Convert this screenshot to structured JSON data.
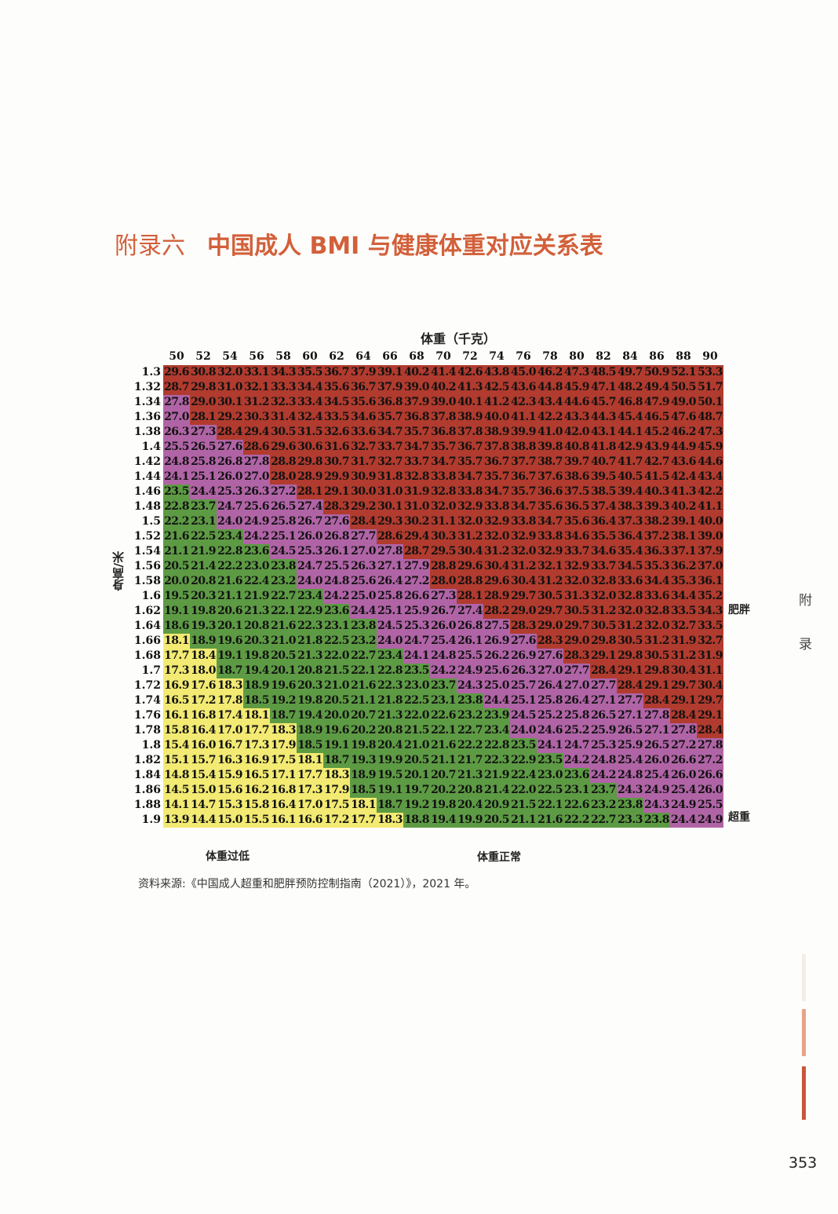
{
  "title": {
    "prefix": "附录六",
    "main": "中国成人 BMI 与健康体重对应关系表"
  },
  "x_axis_title": "体重（千克）",
  "y_axis_title": "身高/米",
  "categories": {
    "underweight": "体重过低",
    "normal": "体重正常",
    "overweight": "超重",
    "obese": "肥胖"
  },
  "side_tab": [
    "附",
    "录"
  ],
  "source": "资料来源:《中国成人超重和肥胖预防控制指南（2021）》，2021 年。",
  "page_number": "353",
  "colors": {
    "underweight": "#f2ea72",
    "normal": "#5d9a44",
    "overweight": "#b064a6",
    "obese": "#b03b2e",
    "accent": "#d2603a"
  },
  "chart_data": {
    "type": "table",
    "x_label": "体重（千克）",
    "y_label": "身高/米",
    "weights": [
      "50",
      "52",
      "54",
      "56",
      "58",
      "60",
      "62",
      "64",
      "66",
      "68",
      "70",
      "72",
      "74",
      "76",
      "78",
      "80",
      "82",
      "84",
      "86",
      "88",
      "90"
    ],
    "heights": [
      "1.3",
      "1.32",
      "1.34",
      "1.36",
      "1.38",
      "1.4",
      "1.42",
      "1.44",
      "1.46",
      "1.48",
      "1.5",
      "1.52",
      "1.54",
      "1.56",
      "1.58",
      "1.6",
      "1.62",
      "1.64",
      "1.66",
      "1.68",
      "1.7",
      "1.72",
      "1.74",
      "1.76",
      "1.78",
      "1.8",
      "1.82",
      "1.84",
      "1.86",
      "1.88",
      "1.9"
    ],
    "bmi": [
      [
        "29.6",
        "30.8",
        "32.0",
        "33.1",
        "34.3",
        "35.5",
        "36.7",
        "37.9",
        "39.1",
        "40.2",
        "41.4",
        "42.6",
        "43.8",
        "45.0",
        "46.2",
        "47.3",
        "48.5",
        "49.7",
        "50.9",
        "52.1",
        "53.3"
      ],
      [
        "28.7",
        "29.8",
        "31.0",
        "32.1",
        "33.3",
        "34.4",
        "35.6",
        "36.7",
        "37.9",
        "39.0",
        "40.2",
        "41.3",
        "42.5",
        "43.6",
        "44.8",
        "45.9",
        "47.1",
        "48.2",
        "49.4",
        "50.5",
        "51.7"
      ],
      [
        "27.8",
        "29.0",
        "30.1",
        "31.2",
        "32.3",
        "33.4",
        "34.5",
        "35.6",
        "36.8",
        "37.9",
        "39.0",
        "40.1",
        "41.2",
        "42.3",
        "43.4",
        "44.6",
        "45.7",
        "46.8",
        "47.9",
        "49.0",
        "50.1"
      ],
      [
        "27.0",
        "28.1",
        "29.2",
        "30.3",
        "31.4",
        "32.4",
        "33.5",
        "34.6",
        "35.7",
        "36.8",
        "37.8",
        "38.9",
        "40.0",
        "41.1",
        "42.2",
        "43.3",
        "44.3",
        "45.4",
        "46.5",
        "47.6",
        "48.7"
      ],
      [
        "26.3",
        "27.3",
        "28.4",
        "29.4",
        "30.5",
        "31.5",
        "32.6",
        "33.6",
        "34.7",
        "35.7",
        "36.8",
        "37.8",
        "38.9",
        "39.9",
        "41.0",
        "42.0",
        "43.1",
        "44.1",
        "45.2",
        "46.2",
        "47.3"
      ],
      [
        "25.5",
        "26.5",
        "27.6",
        "28.6",
        "29.6",
        "30.6",
        "31.6",
        "32.7",
        "33.7",
        "34.7",
        "35.7",
        "36.7",
        "37.8",
        "38.8",
        "39.8",
        "40.8",
        "41.8",
        "42.9",
        "43.9",
        "44.9",
        "45.9"
      ],
      [
        "24.8",
        "25.8",
        "26.8",
        "27.8",
        "28.8",
        "29.8",
        "30.7",
        "31.7",
        "32.7",
        "33.7",
        "34.7",
        "35.7",
        "36.7",
        "37.7",
        "38.7",
        "39.7",
        "40.7",
        "41.7",
        "42.7",
        "43.6",
        "44.6"
      ],
      [
        "24.1",
        "25.1",
        "26.0",
        "27.0",
        "28.0",
        "28.9",
        "29.9",
        "30.9",
        "31.8",
        "32.8",
        "33.8",
        "34.7",
        "35.7",
        "36.7",
        "37.6",
        "38.6",
        "39.5",
        "40.5",
        "41.5",
        "42.4",
        "43.4"
      ],
      [
        "23.5",
        "24.4",
        "25.3",
        "26.3",
        "27.2",
        "28.1",
        "29.1",
        "30.0",
        "31.0",
        "31.9",
        "32.8",
        "33.8",
        "34.7",
        "35.7",
        "36.6",
        "37.5",
        "38.5",
        "39.4",
        "40.3",
        "41.3",
        "42.2"
      ],
      [
        "22.8",
        "23.7",
        "24.7",
        "25.6",
        "26.5",
        "27.4",
        "28.3",
        "29.2",
        "30.1",
        "31.0",
        "32.0",
        "32.9",
        "33.8",
        "34.7",
        "35.6",
        "36.5",
        "37.4",
        "38.3",
        "39.3",
        "40.2",
        "41.1"
      ],
      [
        "22.2",
        "23.1",
        "24.0",
        "24.9",
        "25.8",
        "26.7",
        "27.6",
        "28.4",
        "29.3",
        "30.2",
        "31.1",
        "32.0",
        "32.9",
        "33.8",
        "34.7",
        "35.6",
        "36.4",
        "37.3",
        "38.2",
        "39.1",
        "40.0"
      ],
      [
        "21.6",
        "22.5",
        "23.4",
        "24.2",
        "25.1",
        "26.0",
        "26.8",
        "27.7",
        "28.6",
        "29.4",
        "30.3",
        "31.2",
        "32.0",
        "32.9",
        "33.8",
        "34.6",
        "35.5",
        "36.4",
        "37.2",
        "38.1",
        "39.0"
      ],
      [
        "21.1",
        "21.9",
        "22.8",
        "23.6",
        "24.5",
        "25.3",
        "26.1",
        "27.0",
        "27.8",
        "28.7",
        "29.5",
        "30.4",
        "31.2",
        "32.0",
        "32.9",
        "33.7",
        "34.6",
        "35.4",
        "36.3",
        "37.1",
        "37.9"
      ],
      [
        "20.5",
        "21.4",
        "22.2",
        "23.0",
        "23.8",
        "24.7",
        "25.5",
        "26.3",
        "27.1",
        "27.9",
        "28.8",
        "29.6",
        "30.4",
        "31.2",
        "32.1",
        "32.9",
        "33.7",
        "34.5",
        "35.3",
        "36.2",
        "37.0"
      ],
      [
        "20.0",
        "20.8",
        "21.6",
        "22.4",
        "23.2",
        "24.0",
        "24.8",
        "25.6",
        "26.4",
        "27.2",
        "28.0",
        "28.8",
        "29.6",
        "30.4",
        "31.2",
        "32.0",
        "32.8",
        "33.6",
        "34.4",
        "35.3",
        "36.1"
      ],
      [
        "19.5",
        "20.3",
        "21.1",
        "21.9",
        "22.7",
        "23.4",
        "24.2",
        "25.0",
        "25.8",
        "26.6",
        "27.3",
        "28.1",
        "28.9",
        "29.7",
        "30.5",
        "31.3",
        "32.0",
        "32.8",
        "33.6",
        "34.4",
        "35.2"
      ],
      [
        "19.1",
        "19.8",
        "20.6",
        "21.3",
        "22.1",
        "22.9",
        "23.6",
        "24.4",
        "25.1",
        "25.9",
        "26.7",
        "27.4",
        "28.2",
        "29.0",
        "29.7",
        "30.5",
        "31.2",
        "32.0",
        "32.8",
        "33.5",
        "34.3"
      ],
      [
        "18.6",
        "19.3",
        "20.1",
        "20.8",
        "21.6",
        "22.3",
        "23.1",
        "23.8",
        "24.5",
        "25.3",
        "26.0",
        "26.8",
        "27.5",
        "28.3",
        "29.0",
        "29.7",
        "30.5",
        "31.2",
        "32.0",
        "32.7",
        "33.5"
      ],
      [
        "18.1",
        "18.9",
        "19.6",
        "20.3",
        "21.0",
        "21.8",
        "22.5",
        "23.2",
        "24.0",
        "24.7",
        "25.4",
        "26.1",
        "26.9",
        "27.6",
        "28.3",
        "29.0",
        "29.8",
        "30.5",
        "31.2",
        "31.9",
        "32.7"
      ],
      [
        "17.7",
        "18.4",
        "19.1",
        "19.8",
        "20.5",
        "21.3",
        "22.0",
        "22.7",
        "23.4",
        "24.1",
        "24.8",
        "25.5",
        "26.2",
        "26.9",
        "27.6",
        "28.3",
        "29.1",
        "29.8",
        "30.5",
        "31.2",
        "31.9"
      ],
      [
        "17.3",
        "18.0",
        "18.7",
        "19.4",
        "20.1",
        "20.8",
        "21.5",
        "22.1",
        "22.8",
        "23.5",
        "24.2",
        "24.9",
        "25.6",
        "26.3",
        "27.0",
        "27.7",
        "28.4",
        "29.1",
        "29.8",
        "30.4",
        "31.1"
      ],
      [
        "16.9",
        "17.6",
        "18.3",
        "18.9",
        "19.6",
        "20.3",
        "21.0",
        "21.6",
        "22.3",
        "23.0",
        "23.7",
        "24.3",
        "25.0",
        "25.7",
        "26.4",
        "27.0",
        "27.7",
        "28.4",
        "29.1",
        "29.7",
        "30.4"
      ],
      [
        "16.5",
        "17.2",
        "17.8",
        "18.5",
        "19.2",
        "19.8",
        "20.5",
        "21.1",
        "21.8",
        "22.5",
        "23.1",
        "23.8",
        "24.4",
        "25.1",
        "25.8",
        "26.4",
        "27.1",
        "27.7",
        "28.4",
        "29.1",
        "29.7"
      ],
      [
        "16.1",
        "16.8",
        "17.4",
        "18.1",
        "18.7",
        "19.4",
        "20.0",
        "20.7",
        "21.3",
        "22.0",
        "22.6",
        "23.2",
        "23.9",
        "24.5",
        "25.2",
        "25.8",
        "26.5",
        "27.1",
        "27.8",
        "28.4",
        "29.1"
      ],
      [
        "15.8",
        "16.4",
        "17.0",
        "17.7",
        "18.3",
        "18.9",
        "19.6",
        "20.2",
        "20.8",
        "21.5",
        "22.1",
        "22.7",
        "23.4",
        "24.0",
        "24.6",
        "25.2",
        "25.9",
        "26.5",
        "27.1",
        "27.8",
        "28.4"
      ],
      [
        "15.4",
        "16.0",
        "16.7",
        "17.3",
        "17.9",
        "18.5",
        "19.1",
        "19.8",
        "20.4",
        "21.0",
        "21.6",
        "22.2",
        "22.8",
        "23.5",
        "24.1",
        "24.7",
        "25.3",
        "25.9",
        "26.5",
        "27.2",
        "27.8"
      ],
      [
        "15.1",
        "15.7",
        "16.3",
        "16.9",
        "17.5",
        "18.1",
        "18.7",
        "19.3",
        "19.9",
        "20.5",
        "21.1",
        "21.7",
        "22.3",
        "22.9",
        "23.5",
        "24.2",
        "24.8",
        "25.4",
        "26.0",
        "26.6",
        "27.2"
      ],
      [
        "14.8",
        "15.4",
        "15.9",
        "16.5",
        "17.1",
        "17.7",
        "18.3",
        "18.9",
        "19.5",
        "20.1",
        "20.7",
        "21.3",
        "21.9",
        "22.4",
        "23.0",
        "23.6",
        "24.2",
        "24.8",
        "25.4",
        "26.0",
        "26.6"
      ],
      [
        "14.5",
        "15.0",
        "15.6",
        "16.2",
        "16.8",
        "17.3",
        "17.9",
        "18.5",
        "19.1",
        "19.7",
        "20.2",
        "20.8",
        "21.4",
        "22.0",
        "22.5",
        "23.1",
        "23.7",
        "24.3",
        "24.9",
        "25.4",
        "26.0"
      ],
      [
        "14.1",
        "14.7",
        "15.3",
        "15.8",
        "16.4",
        "17.0",
        "17.5",
        "18.1",
        "18.7",
        "19.2",
        "19.8",
        "20.4",
        "20.9",
        "21.5",
        "22.1",
        "22.6",
        "23.2",
        "23.8",
        "24.3",
        "24.9",
        "25.5"
      ],
      [
        "13.9",
        "14.4",
        "15.0",
        "15.5",
        "16.1",
        "16.6",
        "17.2",
        "17.7",
        "18.3",
        "18.8",
        "19.4",
        "19.9",
        "20.5",
        "21.1",
        "21.6",
        "22.2",
        "22.7",
        "23.3",
        "23.8",
        "24.4",
        "24.9"
      ]
    ]
  }
}
